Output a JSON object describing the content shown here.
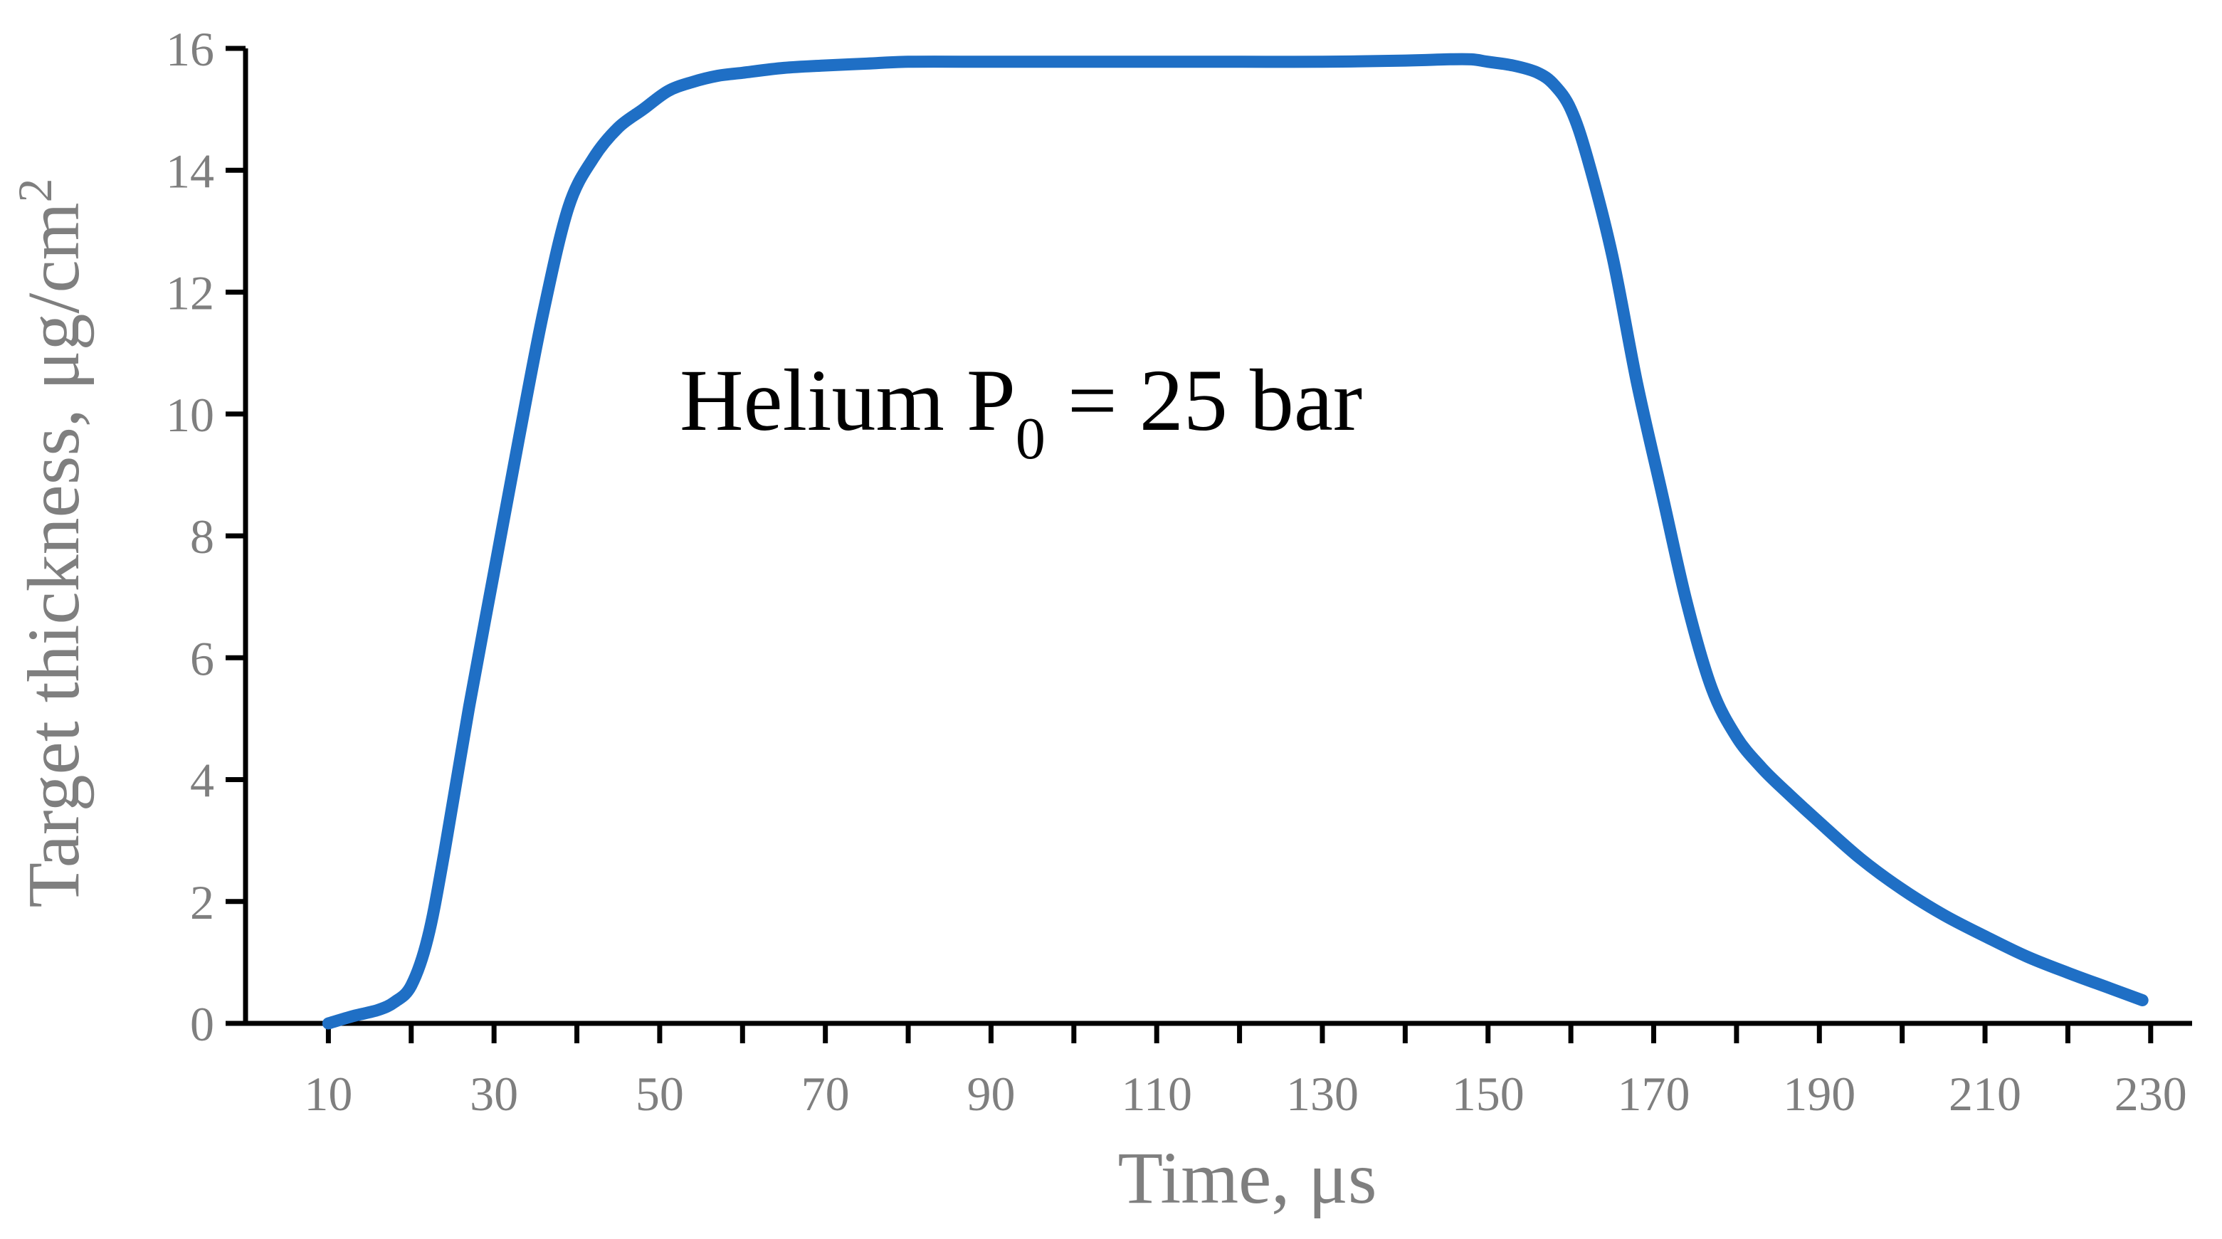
{
  "chart_data": {
    "type": "line",
    "title": "",
    "xlabel": "Time,  μs",
    "ylabel": "Target thickness,  μg/cm",
    "ylabel_superscript": "2",
    "xlim": [
      0,
      235
    ],
    "ylim": [
      0,
      16
    ],
    "x_ticks": [
      10,
      30,
      50,
      70,
      90,
      110,
      130,
      150,
      170,
      190,
      210,
      230
    ],
    "y_ticks": [
      0,
      2,
      4,
      6,
      8,
      10,
      12,
      14,
      16
    ],
    "x_tick_labels": [
      "10",
      "30",
      "50",
      "70",
      "90",
      "110",
      "130",
      "150",
      "170",
      "190",
      "210",
      "230"
    ],
    "y_tick_labels": [
      "0",
      "2",
      "4",
      "6",
      "8",
      "10",
      "12",
      "14",
      "16"
    ],
    "grid": false,
    "legend": "none",
    "annotation": {
      "main": "Helium P",
      "subscript": "0",
      "rest": " = 25 bar"
    },
    "series": [
      {
        "color": "#1f6fc5",
        "x": [
          10,
          13,
          16,
          18,
          20,
          22,
          24,
          27,
          30,
          33,
          36,
          39,
          42,
          45,
          48,
          51,
          54,
          57,
          60,
          65,
          70,
          75,
          80,
          90,
          100,
          110,
          120,
          130,
          140,
          145,
          148,
          150,
          153,
          156,
          158,
          160,
          162,
          165,
          168,
          171,
          174,
          177,
          180,
          183,
          186,
          190,
          195,
          200,
          205,
          210,
          215,
          220,
          225,
          229
        ],
        "y": [
          0.0,
          0.12,
          0.22,
          0.35,
          0.62,
          1.4,
          2.8,
          5.2,
          7.4,
          9.6,
          11.7,
          13.4,
          14.2,
          14.7,
          15.0,
          15.3,
          15.45,
          15.55,
          15.6,
          15.68,
          15.72,
          15.75,
          15.78,
          15.78,
          15.78,
          15.78,
          15.78,
          15.78,
          15.8,
          15.82,
          15.82,
          15.78,
          15.72,
          15.6,
          15.4,
          15.0,
          14.2,
          12.6,
          10.5,
          8.7,
          6.9,
          5.5,
          4.7,
          4.2,
          3.8,
          3.3,
          2.7,
          2.2,
          1.78,
          1.43,
          1.1,
          0.83,
          0.58,
          0.38
        ]
      }
    ]
  }
}
